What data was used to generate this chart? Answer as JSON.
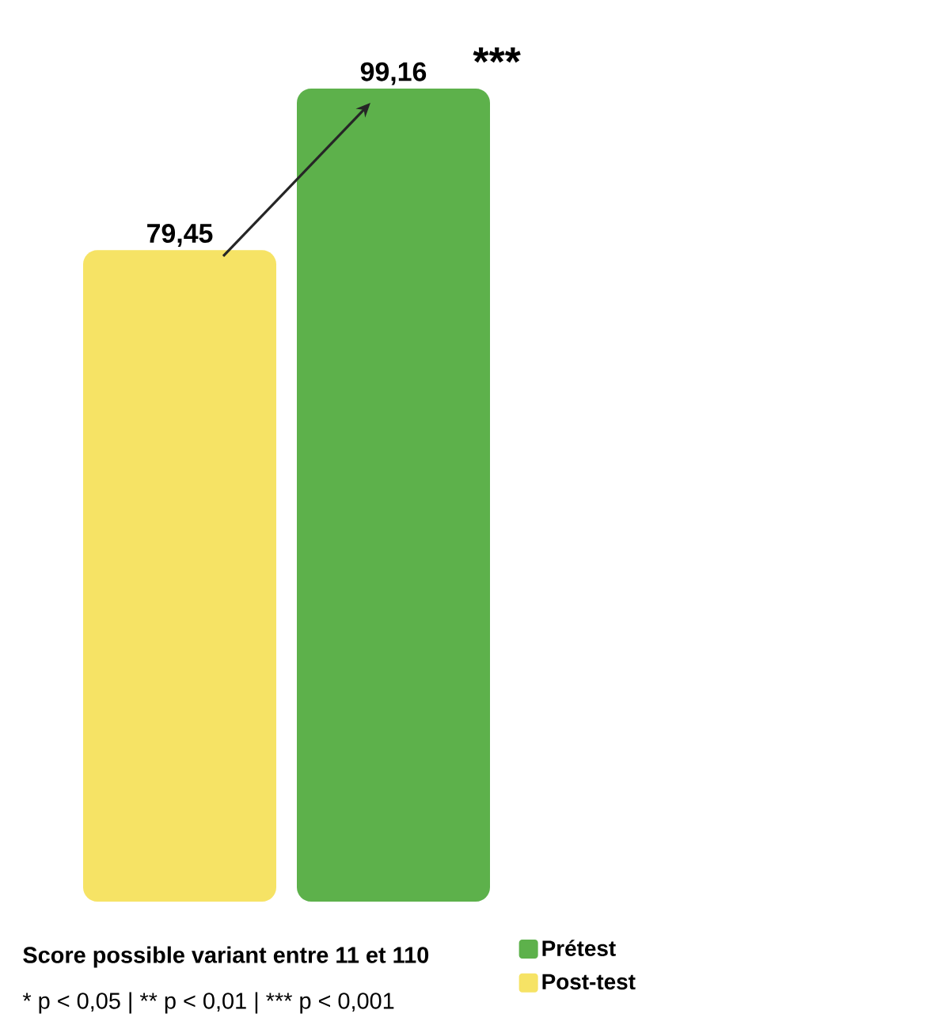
{
  "chart_data": {
    "type": "bar",
    "categories": [
      null
    ],
    "series": [
      {
        "name": "Post-test",
        "color": "#f6e365",
        "values": [
          79.45
        ],
        "value_labels": [
          "79,45"
        ]
      },
      {
        "name": "Prétest",
        "color": "#5db14b",
        "values": [
          99.16
        ],
        "value_labels": [
          "99,16"
        ]
      }
    ],
    "legend": "bottom right",
    "annotations": [
      "***",
      "Score possible variant entre 11 et 110",
      "* p < 0,05 | ** p < 0,01  | *** p < 0,001"
    ]
  }
}
